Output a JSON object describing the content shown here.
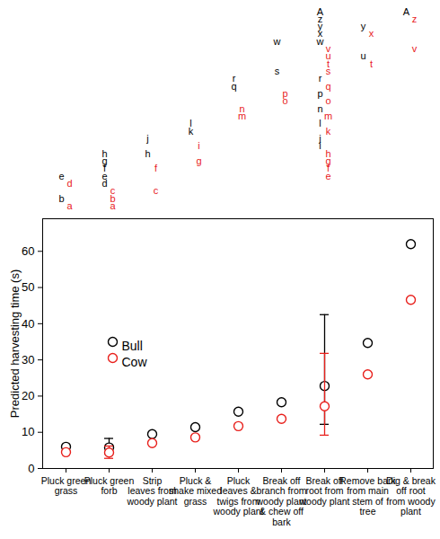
{
  "chart_data": [
    {
      "type": "text",
      "tick_labels": false,
      "series": [
        {
          "color": "#000000",
          "letters": [
            [
              "b",
              "e"
            ],
            [
              "d",
              "e",
              "f",
              "g",
              "h"
            ],
            [
              "h",
              "j"
            ],
            [
              "k",
              "l"
            ],
            [
              "q",
              "r"
            ],
            [
              "s",
              "w"
            ],
            [
              "i",
              "j",
              "l",
              "n",
              "p",
              "r",
              "w",
              "x",
              "y",
              "z",
              "A"
            ],
            [
              "u",
              "y"
            ],
            [
              "A"
            ]
          ]
        },
        {
          "color": "#e8201c",
          "letters": [
            [
              "a",
              "d"
            ],
            [
              "a",
              "b",
              "c"
            ],
            [
              "c",
              "f"
            ],
            [
              "g",
              "i"
            ],
            [
              "m",
              "n"
            ],
            [
              "o",
              "p"
            ],
            [
              "e",
              "f",
              "g",
              "h",
              "k",
              "m",
              "o",
              "q",
              "s",
              "t",
              "u",
              "v"
            ],
            [
              "t",
              "x"
            ],
            [
              "v",
              "z"
            ]
          ]
        }
      ]
    },
    {
      "type": "scatter",
      "categories": [
        "Pluck green grass",
        "Pluck green forb",
        "Strip leaves from woody plant",
        "Pluck & shake mixed grass",
        "Pluck leaves & twigs from woody plant",
        "Break off branch from woody plant & chew off bark",
        "Break off root from woody plant",
        "Remove bark from main stem of tree",
        "Dig & break off root from woody plant"
      ],
      "y_label": "Predicted harvesting time (s)",
      "ylim": [
        0,
        69
      ],
      "yticks": [
        0,
        10,
        20,
        30,
        40,
        50,
        60
      ],
      "legend": "upper left",
      "marker": "open circle",
      "series": [
        {
          "name": "Bull",
          "color": "#000000",
          "values": [
            6.0,
            5.8,
            9.5,
            11.4,
            15.7,
            18.3,
            22.8,
            34.7,
            62.0
          ],
          "error_low": [
            null,
            4.0,
            null,
            null,
            null,
            null,
            12.2,
            null,
            null
          ],
          "error_high": [
            null,
            8.3,
            null,
            null,
            null,
            null,
            42.5,
            null,
            null
          ]
        },
        {
          "name": "Cow",
          "color": "#e8201c",
          "values": [
            4.5,
            4.4,
            7.0,
            8.6,
            11.7,
            13.7,
            17.2,
            26.0,
            46.6
          ],
          "error_low": [
            null,
            2.8,
            null,
            null,
            null,
            null,
            9.2,
            null,
            null
          ],
          "error_high": [
            null,
            6.2,
            null,
            null,
            null,
            null,
            31.8,
            null,
            null
          ]
        }
      ]
    }
  ]
}
